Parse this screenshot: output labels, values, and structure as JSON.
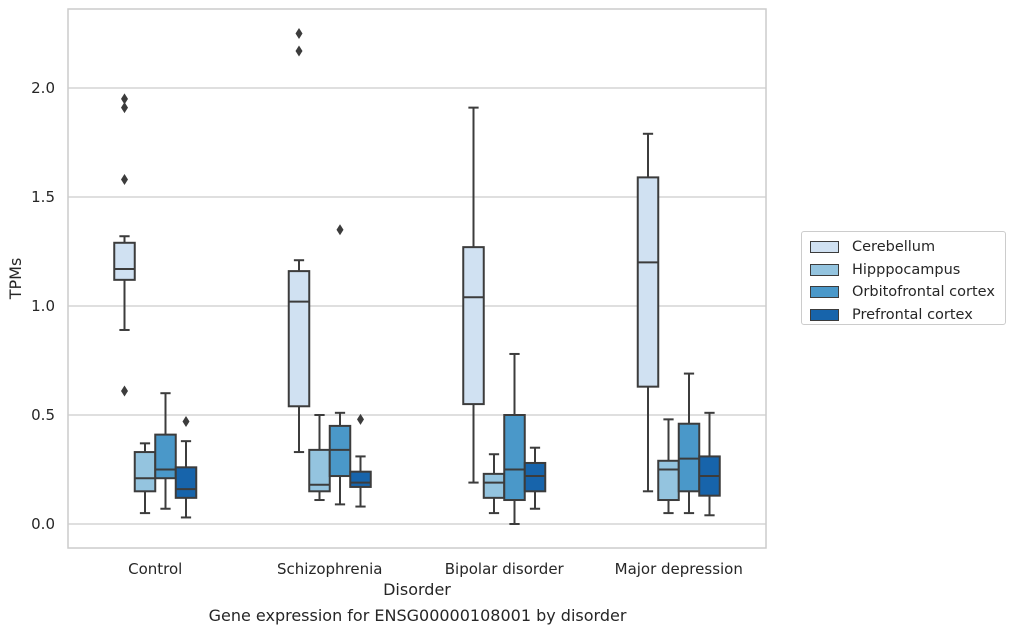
{
  "caption": "Gene expression for ENSG00000108001 by disorder",
  "chart_data": {
    "type": "box",
    "xlabel": "Disorder",
    "ylabel": "TPMs",
    "ylim": [
      -0.11,
      2.37
    ],
    "yticks": [
      "0.0",
      "0.5",
      "1.0",
      "1.5",
      "2.0"
    ],
    "ytick_values": [
      0.0,
      0.5,
      1.0,
      1.5,
      2.0
    ],
    "grid": "horizontal",
    "legend_placement": "right",
    "categories": [
      "Control",
      "Schizophrenia",
      "Bipolar disorder",
      "Major depression"
    ],
    "series": [
      {
        "name": "Cerebellum",
        "color": "#d0e1f2",
        "boxes": [
          {
            "whislo": 0.89,
            "q1": 1.12,
            "med": 1.17,
            "q3": 1.29,
            "whishi": 1.32,
            "fliers": [
              0.61,
              1.58,
              1.91,
              1.95
            ]
          },
          {
            "whislo": 0.33,
            "q1": 0.54,
            "med": 1.02,
            "q3": 1.16,
            "whishi": 1.21,
            "fliers": [
              2.17,
              2.25
            ]
          },
          {
            "whislo": 0.19,
            "q1": 0.55,
            "med": 1.04,
            "q3": 1.27,
            "whishi": 1.91,
            "fliers": []
          },
          {
            "whislo": 0.15,
            "q1": 0.63,
            "med": 1.2,
            "q3": 1.59,
            "whishi": 1.79,
            "fliers": []
          }
        ]
      },
      {
        "name": "Hipppocampus",
        "color": "#94c4df",
        "boxes": [
          {
            "whislo": 0.05,
            "q1": 0.15,
            "med": 0.21,
            "q3": 0.33,
            "whishi": 0.37,
            "fliers": []
          },
          {
            "whislo": 0.11,
            "q1": 0.15,
            "med": 0.18,
            "q3": 0.34,
            "whishi": 0.5,
            "fliers": []
          },
          {
            "whislo": 0.05,
            "q1": 0.12,
            "med": 0.19,
            "q3": 0.23,
            "whishi": 0.32,
            "fliers": []
          },
          {
            "whislo": 0.05,
            "q1": 0.11,
            "med": 0.25,
            "q3": 0.29,
            "whishi": 0.48,
            "fliers": []
          }
        ]
      },
      {
        "name": "Orbitofrontal cortex",
        "color": "#4a98c9",
        "boxes": [
          {
            "whislo": 0.07,
            "q1": 0.21,
            "med": 0.25,
            "q3": 0.41,
            "whishi": 0.6,
            "fliers": []
          },
          {
            "whislo": 0.09,
            "q1": 0.22,
            "med": 0.34,
            "q3": 0.45,
            "whishi": 0.51,
            "fliers": [
              1.35
            ]
          },
          {
            "whislo": 0.0,
            "q1": 0.11,
            "med": 0.25,
            "q3": 0.5,
            "whishi": 0.78,
            "fliers": []
          },
          {
            "whislo": 0.05,
            "q1": 0.15,
            "med": 0.3,
            "q3": 0.46,
            "whishi": 0.69,
            "fliers": []
          }
        ]
      },
      {
        "name": "Prefrontal cortex",
        "color": "#1764ab",
        "boxes": [
          {
            "whislo": 0.03,
            "q1": 0.12,
            "med": 0.16,
            "q3": 0.26,
            "whishi": 0.38,
            "fliers": [
              0.47
            ]
          },
          {
            "whislo": 0.08,
            "q1": 0.17,
            "med": 0.19,
            "q3": 0.24,
            "whishi": 0.31,
            "fliers": [
              0.48
            ]
          },
          {
            "whislo": 0.07,
            "q1": 0.15,
            "med": 0.22,
            "q3": 0.28,
            "whishi": 0.35,
            "fliers": []
          },
          {
            "whislo": 0.04,
            "q1": 0.13,
            "med": 0.22,
            "q3": 0.31,
            "whishi": 0.51,
            "fliers": []
          }
        ]
      }
    ]
  }
}
